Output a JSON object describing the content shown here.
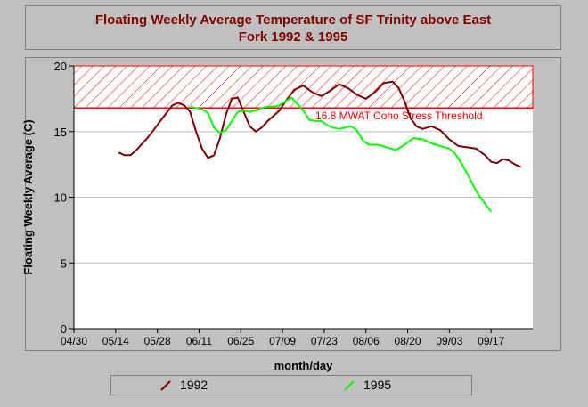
{
  "chart_data": {
    "type": "line",
    "title": "Floating Weekly Average Temperature of SF Trinity above East Fork 1992 & 1995",
    "title_line1": "Floating Weekly Average Temperature of SF Trinity above East",
    "title_line2": "Fork 1992 & 1995",
    "xlabel": "month/day",
    "ylabel": "Floating Weekly Average (C)",
    "x_ticks": [
      "04/30",
      "05/14",
      "05/28",
      "06/11",
      "06/25",
      "07/09",
      "07/23",
      "08/06",
      "08/20",
      "09/03",
      "09/17"
    ],
    "y_ticks": [
      "0",
      "5",
      "10",
      "15",
      "20"
    ],
    "xlim": [
      "04/30",
      "10/01"
    ],
    "ylim": [
      0,
      20
    ],
    "grid": true,
    "legend_position": "bottom",
    "threshold": {
      "value": 16.8,
      "label": "16.8 MWAT Coho Stress Threshold",
      "upper": 20,
      "color": "#ff0000"
    },
    "series": [
      {
        "name": "1992",
        "color": "#800000",
        "points": [
          [
            "05/15",
            13.4
          ],
          [
            "05/17",
            13.2
          ],
          [
            "05/19",
            13.2
          ],
          [
            "05/21",
            13.6
          ],
          [
            "05/23",
            14.1
          ],
          [
            "05/25",
            14.6
          ],
          [
            "05/27",
            15.2
          ],
          [
            "05/29",
            15.8
          ],
          [
            "05/31",
            16.4
          ],
          [
            "06/02",
            17.0
          ],
          [
            "06/04",
            17.2
          ],
          [
            "06/06",
            17.0
          ],
          [
            "06/08",
            16.5
          ],
          [
            "06/10",
            15.0
          ],
          [
            "06/12",
            13.7
          ],
          [
            "06/14",
            13.0
          ],
          [
            "06/16",
            13.2
          ],
          [
            "06/18",
            14.5
          ],
          [
            "06/20",
            16.3
          ],
          [
            "06/22",
            17.5
          ],
          [
            "06/24",
            17.6
          ],
          [
            "06/26",
            16.5
          ],
          [
            "06/28",
            15.4
          ],
          [
            "06/30",
            15.0
          ],
          [
            "07/02",
            15.3
          ],
          [
            "07/04",
            15.8
          ],
          [
            "07/06",
            16.2
          ],
          [
            "07/08",
            16.6
          ],
          [
            "07/10",
            17.3
          ],
          [
            "07/13",
            18.2
          ],
          [
            "07/16",
            18.5
          ],
          [
            "07/19",
            18.0
          ],
          [
            "07/22",
            17.7
          ],
          [
            "07/25",
            18.1
          ],
          [
            "07/28",
            18.6
          ],
          [
            "07/31",
            18.3
          ],
          [
            "08/03",
            17.8
          ],
          [
            "08/06",
            17.5
          ],
          [
            "08/09",
            18.0
          ],
          [
            "08/12",
            18.7
          ],
          [
            "08/15",
            18.8
          ],
          [
            "08/17",
            18.3
          ],
          [
            "08/19",
            17.3
          ],
          [
            "08/21",
            16.0
          ],
          [
            "08/23",
            15.4
          ],
          [
            "08/25",
            15.2
          ],
          [
            "08/28",
            15.4
          ],
          [
            "08/31",
            15.1
          ],
          [
            "09/03",
            14.4
          ],
          [
            "09/06",
            13.9
          ],
          [
            "09/09",
            13.8
          ],
          [
            "09/12",
            13.7
          ],
          [
            "09/15",
            13.2
          ],
          [
            "09/17",
            12.7
          ],
          [
            "09/19",
            12.6
          ],
          [
            "09/21",
            12.9
          ],
          [
            "09/23",
            12.8
          ],
          [
            "09/25",
            12.5
          ],
          [
            "09/27",
            12.3
          ]
        ]
      },
      {
        "name": "1995",
        "color": "#00ff00",
        "points": [
          [
            "06/08",
            16.9
          ],
          [
            "06/10",
            16.8
          ],
          [
            "06/12",
            16.7
          ],
          [
            "06/14",
            16.4
          ],
          [
            "06/16",
            15.3
          ],
          [
            "06/18",
            14.9
          ],
          [
            "06/20",
            15.1
          ],
          [
            "06/22",
            15.8
          ],
          [
            "06/24",
            16.5
          ],
          [
            "06/26",
            16.6
          ],
          [
            "06/28",
            16.5
          ],
          [
            "06/30",
            16.6
          ],
          [
            "07/02",
            16.8
          ],
          [
            "07/04",
            16.9
          ],
          [
            "07/06",
            16.9
          ],
          [
            "07/08",
            17.0
          ],
          [
            "07/10",
            17.3
          ],
          [
            "07/12",
            17.6
          ],
          [
            "07/14",
            17.1
          ],
          [
            "07/16",
            16.6
          ],
          [
            "07/18",
            15.9
          ],
          [
            "07/20",
            15.8
          ],
          [
            "07/22",
            15.8
          ],
          [
            "07/24",
            15.5
          ],
          [
            "07/26",
            15.3
          ],
          [
            "07/28",
            15.2
          ],
          [
            "07/30",
            15.3
          ],
          [
            "08/01",
            15.4
          ],
          [
            "08/03",
            15.1
          ],
          [
            "08/05",
            14.3
          ],
          [
            "08/07",
            14.0
          ],
          [
            "08/10",
            14.0
          ],
          [
            "08/13",
            13.8
          ],
          [
            "08/16",
            13.6
          ],
          [
            "08/19",
            14.0
          ],
          [
            "08/22",
            14.5
          ],
          [
            "08/25",
            14.4
          ],
          [
            "08/28",
            14.1
          ],
          [
            "08/31",
            13.9
          ],
          [
            "09/03",
            13.7
          ],
          [
            "09/05",
            13.3
          ],
          [
            "09/07",
            12.6
          ],
          [
            "09/09",
            11.8
          ],
          [
            "09/11",
            10.9
          ],
          [
            "09/13",
            10.1
          ],
          [
            "09/15",
            9.5
          ],
          [
            "09/17",
            8.9
          ]
        ]
      }
    ]
  }
}
